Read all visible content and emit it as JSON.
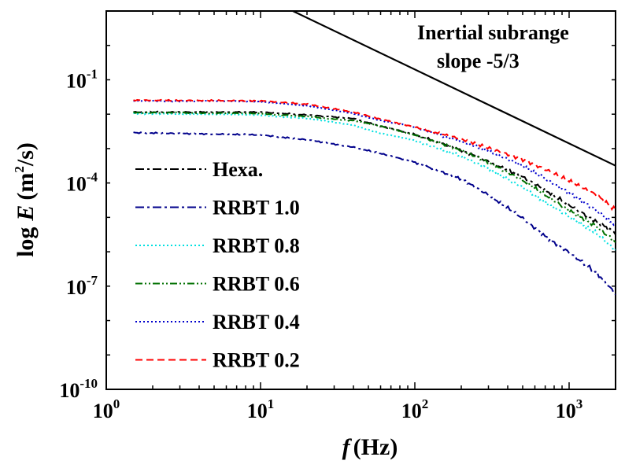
{
  "chart_data": {
    "type": "line",
    "title": "",
    "xlabel": {
      "symbol": "f",
      "unit": "(Hz)"
    },
    "ylabel": {
      "prefix": "log",
      "symbol": "E",
      "unit_open": "(m",
      "unit_exp": "2",
      "unit_close": "/s)"
    },
    "xscale": "log",
    "yscale": "log",
    "xlim": [
      1,
      2000
    ],
    "ylim": [
      1e-10,
      10
    ],
    "x_ticks": [
      {
        "value": 1,
        "base": "10",
        "exp": "0"
      },
      {
        "value": 10,
        "base": "10",
        "exp": "1"
      },
      {
        "value": 100,
        "base": "10",
        "exp": "2"
      },
      {
        "value": 1000,
        "base": "10",
        "exp": "3"
      }
    ],
    "y_ticks": [
      {
        "value": 0.1,
        "base": "10",
        "exp": "-1"
      },
      {
        "value": 0.0001,
        "base": "10",
        "exp": "-4"
      },
      {
        "value": 1e-07,
        "base": "10",
        "exp": "-7"
      },
      {
        "value": 1e-10,
        "base": "10",
        "exp": "-10"
      }
    ],
    "annotation": {
      "line1": "Inertial subrange",
      "line2": "slope  -5/3"
    },
    "reference_line": {
      "name": "slope -5/3",
      "color": "#000000",
      "points": [
        [
          16.2,
          10
        ],
        [
          2000,
          0.000318
        ]
      ]
    },
    "legend_position": "lower-left",
    "series": [
      {
        "name": "Hexa.",
        "color": "#000000",
        "dash": "dashdot",
        "x": [
          1.5,
          10,
          20,
          40,
          60,
          100,
          200,
          300,
          500,
          700,
          1000,
          1500,
          2000
        ],
        "y": [
          0.0115,
          0.0115,
          0.0095,
          0.0075,
          0.0045,
          0.0026,
          0.0009,
          0.00042,
          0.00015,
          6.2e-05,
          2.3e-05,
          7.5e-06,
          3.5e-06
        ]
      },
      {
        "name": "RRBT 1.0",
        "color": "#00008B",
        "dash": "dashdot",
        "x": [
          1.5,
          10,
          20,
          40,
          60,
          100,
          200,
          300,
          500,
          700,
          1000,
          1500,
          2000
        ],
        "y": [
          0.0029,
          0.0025,
          0.0018,
          0.0011,
          0.00072,
          0.0004,
          0.00013,
          4.5e-05,
          9.5e-06,
          2.8e-06,
          9.5e-07,
          2.5e-07,
          6e-08
        ]
      },
      {
        "name": "RRBT 0.8",
        "color": "#00E0E0",
        "dash": "dotted",
        "x": [
          1.5,
          10,
          20,
          40,
          60,
          100,
          200,
          300,
          500,
          700,
          1000,
          1500,
          2000
        ],
        "y": [
          0.0105,
          0.0095,
          0.0075,
          0.0048,
          0.0028,
          0.0017,
          0.0006,
          0.00026,
          7.5e-05,
          2.8e-05,
          1.05e-05,
          3.5e-06,
          1.1e-06
        ]
      },
      {
        "name": "RRBT 0.6",
        "color": "#007000",
        "dash": "dashdotdot",
        "x": [
          1.5,
          10,
          20,
          40,
          60,
          100,
          200,
          300,
          500,
          700,
          1000,
          1500,
          2000
        ],
        "y": [
          0.0112,
          0.0105,
          0.0085,
          0.0065,
          0.0045,
          0.0025,
          0.0009,
          0.0004,
          0.00012,
          4.5e-05,
          1.6e-05,
          5.5e-06,
          1.9e-06
        ]
      },
      {
        "name": "RRBT 0.4",
        "color": "#0000CC",
        "dash": "dotted",
        "x": [
          1.5,
          10,
          20,
          40,
          60,
          100,
          200,
          300,
          500,
          700,
          1000,
          1500,
          2000
        ],
        "y": [
          0.0245,
          0.0235,
          0.0175,
          0.0105,
          0.0065,
          0.0042,
          0.0016,
          0.00085,
          0.00032,
          0.000135,
          5e-05,
          1.6e-05,
          6e-06
        ]
      },
      {
        "name": "RRBT 0.2",
        "color": "#FF0000",
        "dash": "dashed",
        "x": [
          1.5,
          10,
          20,
          40,
          60,
          100,
          200,
          300,
          500,
          700,
          1000,
          1500,
          2000
        ],
        "y": [
          0.0255,
          0.0245,
          0.0195,
          0.0115,
          0.0072,
          0.0042,
          0.0019,
          0.00105,
          0.00048,
          0.00025,
          0.000115,
          4.5e-05,
          1.65e-05
        ]
      }
    ]
  }
}
